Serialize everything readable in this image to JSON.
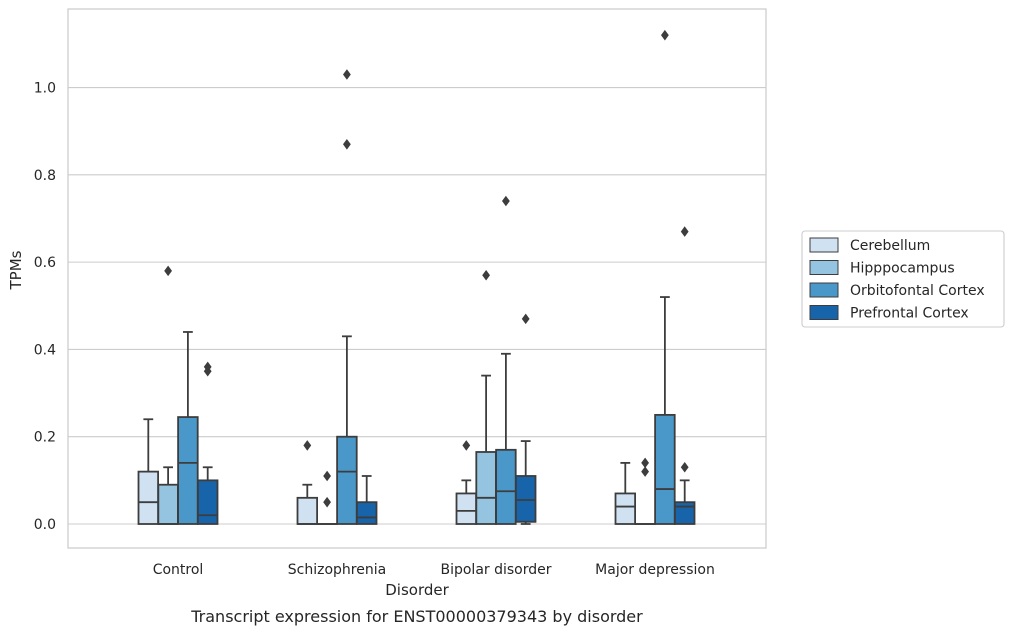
{
  "chart_data": {
    "type": "box",
    "caption": "Transcript expression for ENST00000379343 by disorder",
    "xlabel": "Disorder",
    "ylabel": "TPMs",
    "ylim": [
      -0.055,
      1.18
    ],
    "yticks": [
      "0.0",
      "0.2",
      "0.4",
      "0.6",
      "0.8",
      "1.0"
    ],
    "grid": true,
    "legend_position": "right",
    "categories": [
      "Control",
      "Schizophrenia",
      "Bipolar disorder",
      "Major depression"
    ],
    "series": [
      {
        "name": "Cerebellum",
        "color": "#d0e1f2",
        "boxes": [
          {
            "whislo": 0.0,
            "q1": 0.0,
            "med": 0.05,
            "q3": 0.12,
            "whishi": 0.24,
            "fliers": []
          },
          {
            "whislo": 0.0,
            "q1": 0.0,
            "med": 0.0,
            "q3": 0.06,
            "whishi": 0.09,
            "fliers": [
              0.18
            ]
          },
          {
            "whislo": 0.0,
            "q1": 0.0,
            "med": 0.03,
            "q3": 0.07,
            "whishi": 0.1,
            "fliers": [
              0.18
            ]
          },
          {
            "whislo": 0.0,
            "q1": 0.0,
            "med": 0.04,
            "q3": 0.07,
            "whishi": 0.14,
            "fliers": []
          }
        ]
      },
      {
        "name": "Hipppocampus",
        "color": "#94c4df",
        "boxes": [
          {
            "whislo": 0.0,
            "q1": 0.0,
            "med": 0.0,
            "q3": 0.09,
            "whishi": 0.13,
            "fliers": [
              0.58
            ]
          },
          {
            "whislo": 0.0,
            "q1": 0.0,
            "med": 0.0,
            "q3": 0.0,
            "whishi": 0.0,
            "fliers": [
              0.05,
              0.11
            ]
          },
          {
            "whislo": 0.0,
            "q1": 0.0,
            "med": 0.06,
            "q3": 0.165,
            "whishi": 0.34,
            "fliers": [
              0.57
            ]
          },
          {
            "whislo": 0.0,
            "q1": 0.0,
            "med": 0.0,
            "q3": 0.0,
            "whishi": 0.0,
            "fliers": [
              0.12,
              0.14
            ]
          }
        ]
      },
      {
        "name": "Orbitofontal Cortex",
        "color": "#4a98c9",
        "boxes": [
          {
            "whislo": 0.0,
            "q1": 0.0,
            "med": 0.14,
            "q3": 0.245,
            "whishi": 0.44,
            "fliers": []
          },
          {
            "whislo": 0.0,
            "q1": 0.0,
            "med": 0.12,
            "q3": 0.2,
            "whishi": 0.43,
            "fliers": [
              0.87,
              1.03
            ]
          },
          {
            "whislo": 0.0,
            "q1": 0.0,
            "med": 0.075,
            "q3": 0.17,
            "whishi": 0.39,
            "fliers": [
              0.74
            ]
          },
          {
            "whislo": 0.0,
            "q1": 0.0,
            "med": 0.08,
            "q3": 0.25,
            "whishi": 0.52,
            "fliers": [
              1.12
            ]
          }
        ]
      },
      {
        "name": "Prefrontal Cortex",
        "color": "#1764ab",
        "boxes": [
          {
            "whislo": 0.0,
            "q1": 0.0,
            "med": 0.02,
            "q3": 0.1,
            "whishi": 0.13,
            "fliers": [
              0.35,
              0.36
            ]
          },
          {
            "whislo": 0.0,
            "q1": 0.0,
            "med": 0.015,
            "q3": 0.05,
            "whishi": 0.11,
            "fliers": []
          },
          {
            "whislo": 0.0,
            "q1": 0.005,
            "med": 0.055,
            "q3": 0.11,
            "whishi": 0.19,
            "fliers": [
              0.47
            ]
          },
          {
            "whislo": 0.0,
            "q1": 0.0,
            "med": 0.04,
            "q3": 0.05,
            "whishi": 0.1,
            "fliers": [
              0.13,
              0.67
            ]
          }
        ]
      }
    ]
  }
}
